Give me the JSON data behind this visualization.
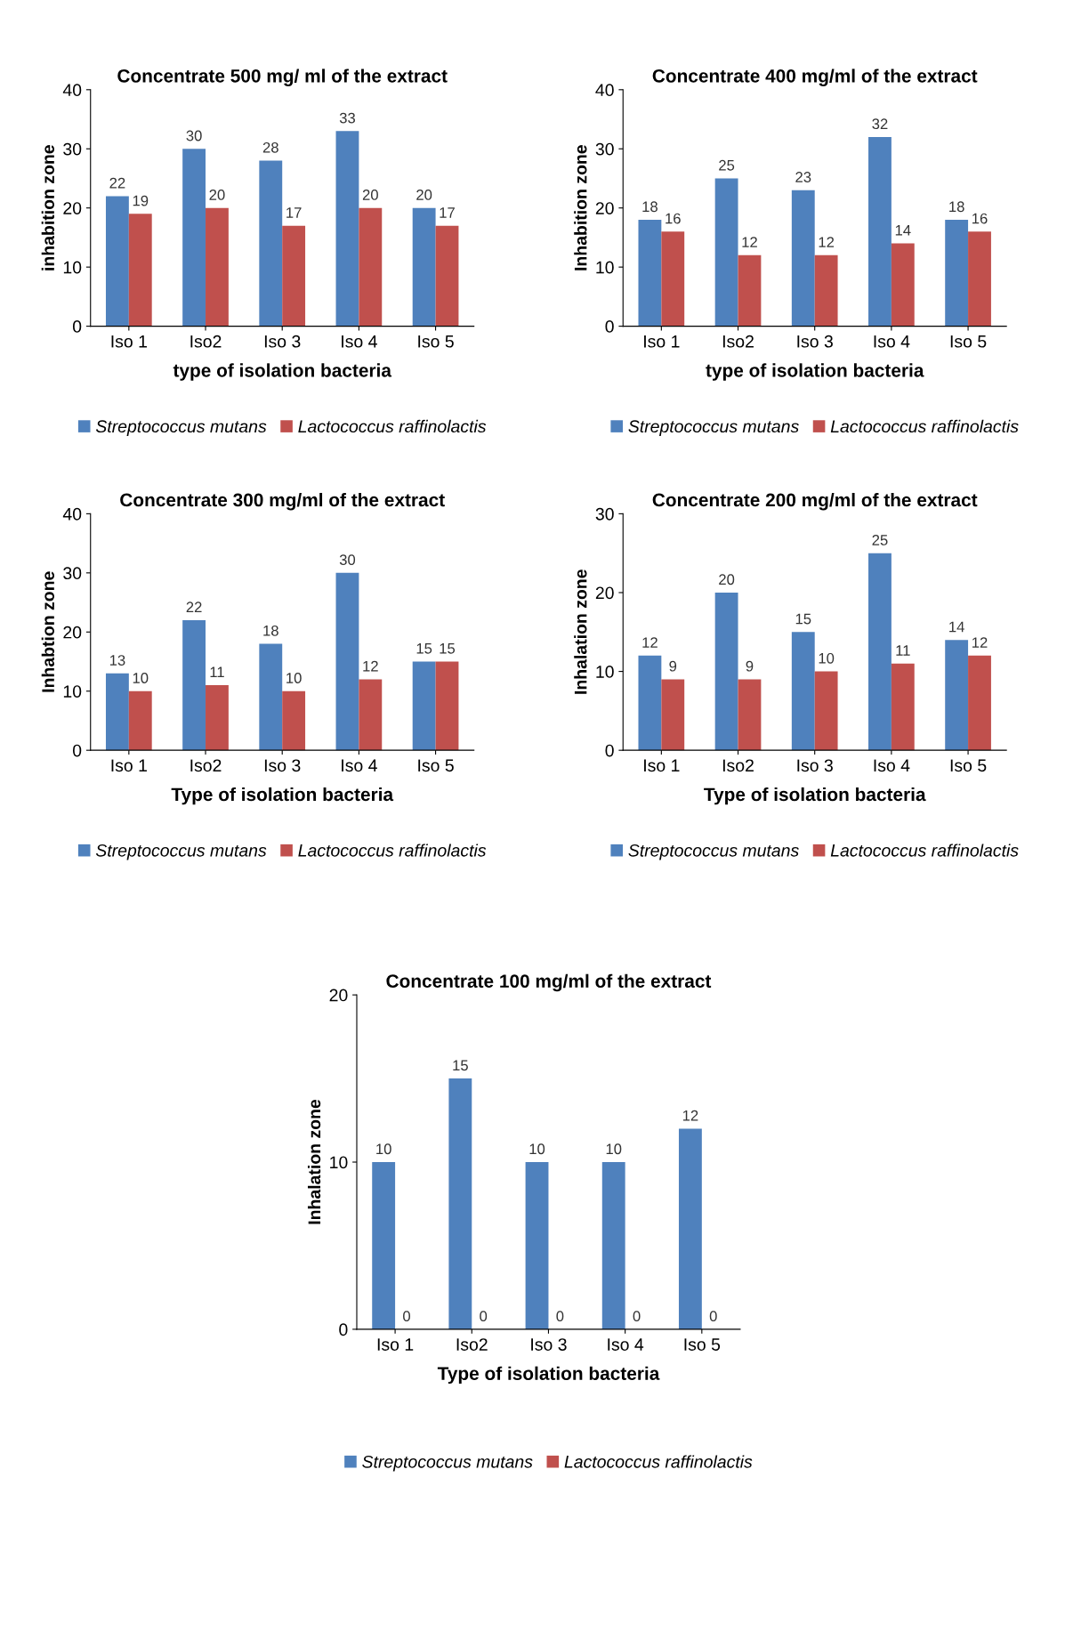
{
  "chart_data": [
    {
      "type": "bar",
      "title": "Concentrate 500 mg/ ml of the extract",
      "xlabel": "type of isolation bacteria",
      "ylabel": "inhabition zone",
      "categories": [
        "Iso 1",
        "Iso2",
        "Iso 3",
        "Iso 4",
        "Iso 5"
      ],
      "series": [
        {
          "name": "Streptococcus mutans",
          "color": "#4f81bd",
          "values": [
            22,
            30,
            28,
            33,
            20
          ]
        },
        {
          "name": "Lactococcus raffinolactis",
          "color": "#c0504d",
          "values": [
            19,
            20,
            17,
            20,
            17
          ]
        }
      ],
      "ylim": [
        0,
        40
      ],
      "yticks": [
        0,
        10,
        20,
        30,
        40
      ],
      "data_labels": true,
      "legend": "bottom",
      "grid": false
    },
    {
      "type": "bar",
      "title": "Concentrate 400 mg/ml of the extract",
      "xlabel": "type of isolation bacteria",
      "ylabel": "Inhabition zone",
      "categories": [
        "Iso 1",
        "Iso2",
        "Iso 3",
        "Iso 4",
        "Iso 5"
      ],
      "series": [
        {
          "name": "Streptococcus mutans",
          "color": "#4f81bd",
          "values": [
            18,
            25,
            23,
            32,
            18
          ]
        },
        {
          "name": "Lactococcus raffinolactis",
          "color": "#c0504d",
          "values": [
            16,
            12,
            12,
            14,
            16
          ]
        }
      ],
      "ylim": [
        0,
        40
      ],
      "yticks": [
        0,
        10,
        20,
        30,
        40
      ],
      "data_labels": true,
      "legend": "bottom",
      "grid": false
    },
    {
      "type": "bar",
      "title": "Concentrate 300 mg/ml of the extract",
      "xlabel": "Type of isolation bacteria",
      "ylabel": "Inhabtion zone",
      "categories": [
        "Iso 1",
        "Iso2",
        "Iso 3",
        "Iso 4",
        "Iso 5"
      ],
      "series": [
        {
          "name": "Streptococcus mutans",
          "color": "#4f81bd",
          "values": [
            13,
            22,
            18,
            30,
            15
          ]
        },
        {
          "name": "Lactococcus raffinolactis",
          "color": "#c0504d",
          "values": [
            10,
            11,
            10,
            12,
            15
          ]
        }
      ],
      "ylim": [
        0,
        40
      ],
      "yticks": [
        0,
        10,
        20,
        30,
        40
      ],
      "data_labels": true,
      "legend": "bottom",
      "grid": false
    },
    {
      "type": "bar",
      "title": "Concentrate 200 mg/ml of the extract",
      "xlabel": "Type of isolation bacteria",
      "ylabel": "Inhalation zone",
      "categories": [
        "Iso 1",
        "Iso2",
        "Iso 3",
        "Iso 4",
        "Iso 5"
      ],
      "series": [
        {
          "name": "Streptococcus mutans",
          "color": "#4f81bd",
          "values": [
            12,
            20,
            15,
            25,
            14
          ]
        },
        {
          "name": "Lactococcus raffinolactis",
          "color": "#c0504d",
          "values": [
            9,
            9,
            10,
            11,
            12
          ]
        }
      ],
      "ylim": [
        0,
        30
      ],
      "yticks": [
        0,
        10,
        20,
        30
      ],
      "data_labels": true,
      "legend": "bottom",
      "grid": false
    },
    {
      "type": "bar",
      "title": "Concentrate 100 mg/ml of the extract",
      "xlabel": "Type of isolation bacteria",
      "ylabel": "Inhalation zone",
      "categories": [
        "Iso 1",
        "Iso2",
        "Iso 3",
        "Iso 4",
        "Iso 5"
      ],
      "series": [
        {
          "name": "Streptococcus mutans",
          "color": "#4f81bd",
          "values": [
            10,
            15,
            10,
            10,
            12
          ]
        },
        {
          "name": "Lactococcus raffinolactis",
          "color": "#c0504d",
          "values": [
            0,
            0,
            0,
            0,
            0
          ]
        }
      ],
      "ylim": [
        0,
        20
      ],
      "yticks": [
        0,
        10,
        20
      ],
      "data_labels": true,
      "legend": "bottom",
      "grid": false
    }
  ]
}
